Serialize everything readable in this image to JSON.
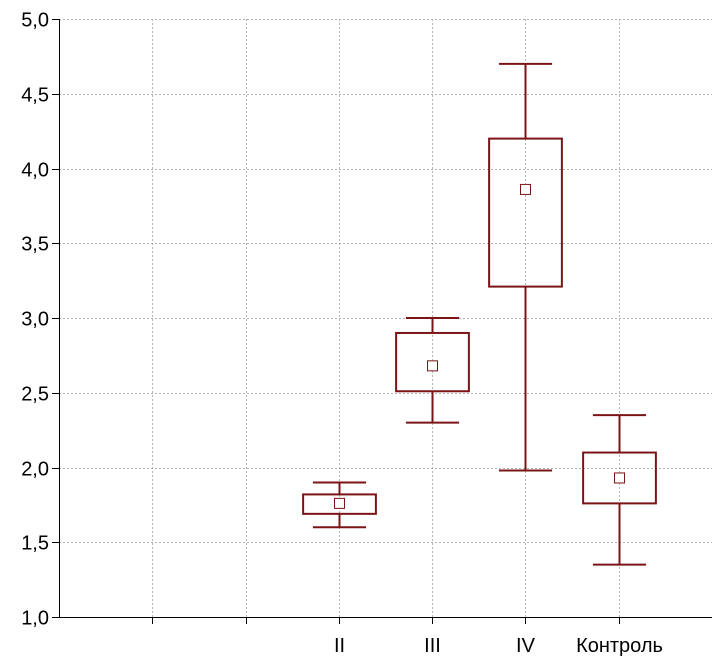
{
  "chart_data": {
    "type": "box",
    "title": "",
    "xlabel": "",
    "ylabel": "",
    "ylim": [
      1.0,
      5.0
    ],
    "yticks": [
      1.0,
      1.5,
      2.0,
      2.5,
      3.0,
      3.5,
      4.0,
      4.5,
      5.0
    ],
    "ytick_labels": [
      "1,0",
      "1,5",
      "2,0",
      "2,5",
      "3,0",
      "3,5",
      "4,0",
      "4,5",
      "5,0"
    ],
    "grid": true,
    "categories": [
      "",
      "",
      "II",
      "III",
      "IV",
      "Контроль",
      ""
    ],
    "boxes": [
      {
        "category": "II",
        "whisker_low": 1.6,
        "q1": 1.69,
        "mean": 1.76,
        "q3": 1.82,
        "whisker_high": 1.9
      },
      {
        "category": "III",
        "whisker_low": 2.3,
        "q1": 2.51,
        "mean": 2.68,
        "q3": 2.9,
        "whisker_high": 3.0
      },
      {
        "category": "IV",
        "whisker_low": 1.98,
        "q1": 3.21,
        "mean": 3.86,
        "q3": 4.2,
        "whisker_high": 4.7
      },
      {
        "category": "Контроль",
        "whisker_low": 1.35,
        "q1": 1.76,
        "mean": 1.93,
        "q3": 2.1,
        "whisker_high": 2.35
      }
    ],
    "colors": {
      "box": "#7b1416",
      "grid": "#b4b4b4",
      "axis": "#000000"
    }
  }
}
